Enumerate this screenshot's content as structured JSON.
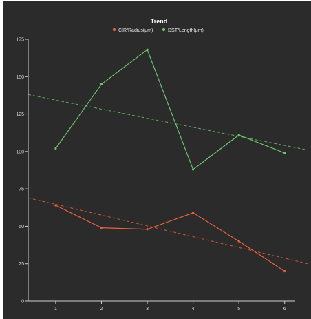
{
  "chart_data": {
    "type": "line",
    "title": "Trend",
    "xlabel": "",
    "ylabel": "",
    "x": [
      1,
      2,
      3,
      4,
      5,
      6
    ],
    "xlim": [
      0.4,
      6.5
    ],
    "ylim": [
      0,
      175
    ],
    "yticks": [
      0,
      25,
      50,
      75,
      100,
      125,
      150,
      175
    ],
    "xticks": [
      1,
      2,
      3,
      4,
      5,
      6
    ],
    "grid": false,
    "legend_position": "top-center",
    "background": "#2b2b2b",
    "series": [
      {
        "name": "CIR/Radius(μm)",
        "color": "#e8603c",
        "values": [
          64,
          49,
          48,
          59,
          40,
          20
        ]
      },
      {
        "name": "DST/Length(μm)",
        "color": "#6cc46c",
        "values": [
          102,
          145,
          168,
          88,
          111,
          99
        ]
      }
    ],
    "trendlines": [
      {
        "series": "CIR/Radius(μm)",
        "color": "#e8603c",
        "style": "dashed",
        "y_at_xmin": 69,
        "y_at_xmax": 25
      },
      {
        "series": "DST/Length(μm)",
        "color": "#6cc46c",
        "style": "dashed",
        "y_at_xmin": 138,
        "y_at_xmax": 101
      }
    ]
  }
}
